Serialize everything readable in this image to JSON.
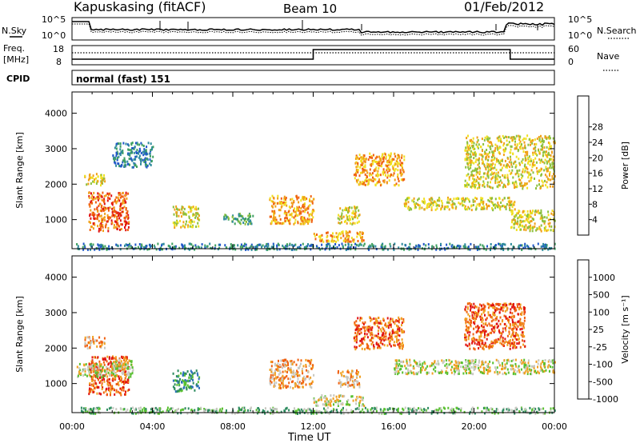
{
  "header": {
    "station": "Kapuskasing (fitACF)",
    "beam": "Beam 10",
    "date": "01/Feb/2012"
  },
  "aux_panels": {
    "noise": {
      "left_label": "N.Sky",
      "right_label": "N.Search",
      "tick_labels": [
        "10^5",
        "10^0"
      ]
    },
    "freq": {
      "left_label_line1": "Freq.",
      "left_label_line2": "[MHz]",
      "left_ticks": [
        "18",
        "8"
      ],
      "right_label": "Nave",
      "right_ticks": [
        "60",
        "0"
      ]
    },
    "cpid": {
      "label": "CPID",
      "text": "normal (fast) 151"
    }
  },
  "xaxis": {
    "label": "Time UT",
    "ticks": [
      "00:00",
      "04:00",
      "08:00",
      "12:00",
      "16:00",
      "20:00",
      "00:00"
    ]
  },
  "chart_data": [
    {
      "type": "heatmap",
      "name": "power",
      "ylabel": "Slant Range [km]",
      "yticks": [
        1000,
        2000,
        3000,
        4000
      ],
      "ylim": [
        180,
        4600
      ],
      "xlim_hours": [
        0,
        24
      ],
      "colorbar": {
        "label": "Power [dB]",
        "ticks": [
          "4",
          "8",
          "12",
          "16",
          "20",
          "24",
          "28"
        ],
        "colors": [
          "#1010e0",
          "#1e56c8",
          "#2e8a9c",
          "#3fa060",
          "#8cc03c",
          "#f0e020",
          "#f0a018",
          "#f06010",
          "#e01010"
        ]
      },
      "regions": [
        {
          "t": [
            0.6,
            1.6
          ],
          "r": [
            2000,
            2350
          ],
          "level": 5
        },
        {
          "t": [
            0.8,
            2.8
          ],
          "r": [
            700,
            1800
          ],
          "level": 7
        },
        {
          "t": [
            2.0,
            4.0
          ],
          "r": [
            2500,
            3200
          ],
          "level": 2
        },
        {
          "t": [
            5.0,
            6.3
          ],
          "r": [
            800,
            1400
          ],
          "level": 5
        },
        {
          "t": [
            7.5,
            9.0
          ],
          "r": [
            900,
            1200
          ],
          "level": 3
        },
        {
          "t": [
            9.8,
            12.0
          ],
          "r": [
            900,
            1700
          ],
          "level": 6
        },
        {
          "t": [
            12.0,
            14.5
          ],
          "r": [
            400,
            700
          ],
          "level": 6
        },
        {
          "t": [
            13.2,
            14.3
          ],
          "r": [
            900,
            1400
          ],
          "level": 5
        },
        {
          "t": [
            14.0,
            16.5
          ],
          "r": [
            2000,
            2900
          ],
          "level": 6
        },
        {
          "t": [
            16.5,
            22.0
          ],
          "r": [
            1300,
            1650
          ],
          "level": 5
        },
        {
          "t": [
            19.5,
            24.0
          ],
          "r": [
            1900,
            3400
          ],
          "level": 5
        },
        {
          "t": [
            21.8,
            24.0
          ],
          "r": [
            700,
            1300
          ],
          "level": 5
        },
        {
          "t": [
            0.2,
            24.0
          ],
          "r": [
            180,
            350
          ],
          "level": 2
        }
      ]
    },
    {
      "type": "heatmap",
      "name": "velocity",
      "ylabel": "Slant Range [km]",
      "yticks": [
        1000,
        2000,
        3000,
        4000
      ],
      "ylim": [
        180,
        4600
      ],
      "xlim_hours": [
        0,
        24
      ],
      "colorbar": {
        "label": "Velocity [m s⁻¹]",
        "ticks": [
          "1000",
          "500",
          "100",
          "25",
          "-25",
          "-100",
          "-500",
          "-1000"
        ],
        "colors": [
          "#1818c0",
          "#2a6fb8",
          "#2e8c60",
          "#58c030",
          "#c8c8c0",
          "#f0a020",
          "#f06010",
          "#e01010"
        ]
      },
      "regions": [
        {
          "t": [
            0.6,
            1.6
          ],
          "r": [
            2000,
            2350
          ],
          "level": 5
        },
        {
          "t": [
            0.8,
            2.8
          ],
          "r": [
            700,
            1800
          ],
          "level": 6
        },
        {
          "t": [
            2.0,
            3.0
          ],
          "r": [
            1400,
            1700
          ],
          "level": 4
        },
        {
          "t": [
            5.0,
            6.3
          ],
          "r": [
            800,
            1400
          ],
          "level": 2
        },
        {
          "t": [
            9.8,
            12.0
          ],
          "r": [
            900,
            1700
          ],
          "level": 5
        },
        {
          "t": [
            12.0,
            14.5
          ],
          "r": [
            400,
            700
          ],
          "level": 4
        },
        {
          "t": [
            13.2,
            14.3
          ],
          "r": [
            900,
            1400
          ],
          "level": 5
        },
        {
          "t": [
            14.0,
            16.5
          ],
          "r": [
            2000,
            2900
          ],
          "level": 6
        },
        {
          "t": [
            16.0,
            24.0
          ],
          "r": [
            1300,
            1700
          ],
          "level": 4
        },
        {
          "t": [
            19.5,
            22.5
          ],
          "r": [
            2000,
            3300
          ],
          "level": 6
        },
        {
          "t": [
            0.2,
            3.0
          ],
          "r": [
            1200,
            1600
          ],
          "level": 4
        },
        {
          "t": [
            0.2,
            24.0
          ],
          "r": [
            180,
            350
          ],
          "level": 3
        }
      ]
    }
  ]
}
